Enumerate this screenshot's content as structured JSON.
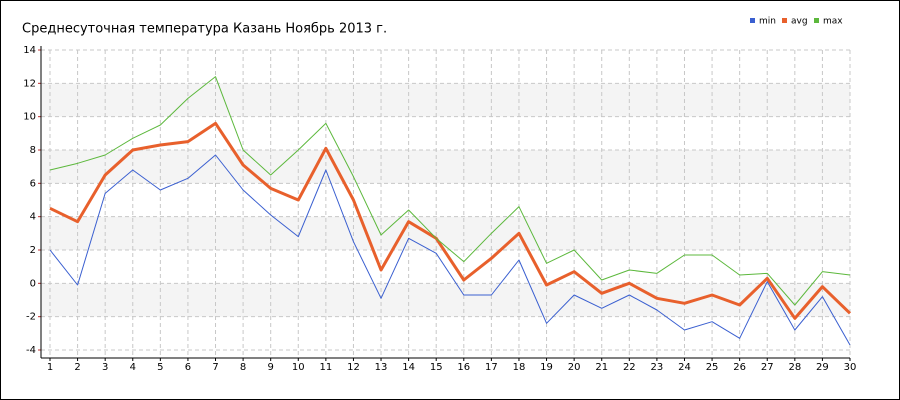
{
  "chart_data": {
    "type": "line",
    "title": "Среднесуточная температура Казань  Ноябрь 2013 г.",
    "x": [
      1,
      2,
      3,
      4,
      5,
      6,
      7,
      8,
      9,
      10,
      11,
      12,
      13,
      14,
      15,
      16,
      17,
      18,
      19,
      20,
      21,
      22,
      23,
      24,
      25,
      26,
      27,
      28,
      29,
      30
    ],
    "xlim": [
      1,
      30
    ],
    "xticks": [
      1,
      2,
      3,
      4,
      5,
      6,
      7,
      8,
      9,
      10,
      11,
      12,
      13,
      14,
      15,
      16,
      17,
      18,
      19,
      20,
      21,
      22,
      23,
      24,
      25,
      26,
      27,
      28,
      29,
      30
    ],
    "ylim": [
      -4,
      14
    ],
    "yticks": [
      -4,
      -2,
      0,
      2,
      4,
      6,
      8,
      10,
      12,
      14
    ],
    "grid": true,
    "bands": true,
    "legend": "top-right",
    "series": [
      {
        "name": "min",
        "color": "#3a5fd0",
        "values": [
          2.0,
          -0.1,
          5.4,
          6.8,
          5.6,
          6.3,
          7.7,
          5.6,
          4.1,
          2.8,
          6.8,
          2.5,
          -0.9,
          2.7,
          1.8,
          -0.7,
          -0.7,
          1.4,
          -2.4,
          -0.7,
          -1.5,
          -0.7,
          -1.6,
          -2.8,
          -2.3,
          -3.3,
          0.1,
          -2.8,
          -0.8,
          -3.7
        ]
      },
      {
        "name": "avg",
        "color": "#e8602c",
        "values": [
          4.5,
          3.7,
          6.5,
          8.0,
          8.3,
          8.5,
          9.6,
          7.1,
          5.7,
          5.0,
          8.1,
          5.0,
          0.8,
          3.7,
          2.7,
          0.2,
          1.5,
          3.0,
          -0.1,
          0.7,
          -0.6,
          0.0,
          -0.9,
          -1.2,
          -0.7,
          -1.3,
          0.3,
          -2.1,
          -0.2,
          -1.8
        ]
      },
      {
        "name": "max",
        "color": "#5cb83c",
        "values": [
          6.8,
          7.2,
          7.7,
          8.7,
          9.5,
          11.1,
          12.4,
          8.0,
          6.5,
          8.0,
          9.6,
          6.4,
          2.9,
          4.4,
          2.7,
          1.3,
          3.0,
          4.6,
          1.2,
          2.0,
          0.2,
          0.8,
          0.6,
          1.7,
          1.7,
          0.5,
          0.6,
          -1.3,
          0.7,
          0.5
        ]
      }
    ]
  }
}
